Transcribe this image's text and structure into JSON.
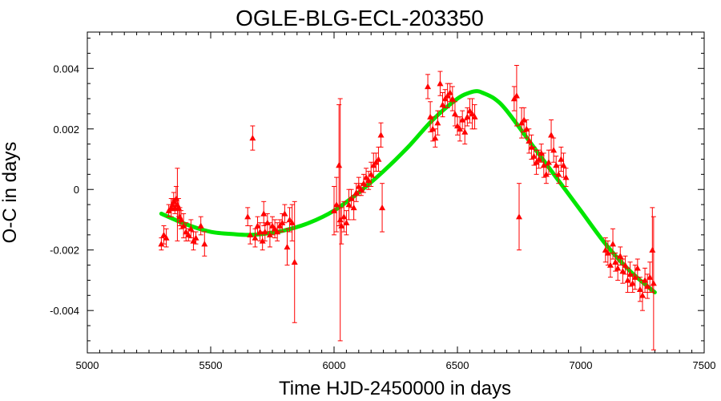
{
  "chart_data": {
    "type": "scatter",
    "title": "OGLE-BLG-ECL-203350",
    "xlabel": "Time HJD-2450000 in days",
    "ylabel": "O-C in days",
    "xlim": [
      5000,
      7500
    ],
    "ylim": [
      -0.0054,
      0.0052
    ],
    "xticks": [
      5000,
      5500,
      6000,
      6500,
      7000,
      7500
    ],
    "xtick_labels": [
      "5000",
      "5500",
      "6000",
      "6500",
      "7000",
      "7500"
    ],
    "yticks": [
      -0.004,
      -0.002,
      0,
      0.002,
      0.004
    ],
    "ytick_labels": [
      "-0.004",
      "-0.002",
      "0",
      "0.002",
      "0.004"
    ],
    "grid": false,
    "colors": {
      "points": "#ff0000",
      "fit": "#00e600",
      "axes": "#000000"
    },
    "series": [
      {
        "kind": "points_with_errorbars",
        "points": [
          {
            "x": 5300,
            "y": -0.0018,
            "err": 0.0002
          },
          {
            "x": 5310,
            "y": -0.0015,
            "err": 0.0003
          },
          {
            "x": 5320,
            "y": -0.0016,
            "err": 0.0003
          },
          {
            "x": 5330,
            "y": -0.0007,
            "err": 0.0002
          },
          {
            "x": 5340,
            "y": -0.0006,
            "err": 0.0003
          },
          {
            "x": 5345,
            "y": -0.0005,
            "err": 0.0002
          },
          {
            "x": 5350,
            "y": -0.0004,
            "err": 0.0003
          },
          {
            "x": 5355,
            "y": -0.0006,
            "err": 0.0002
          },
          {
            "x": 5360,
            "y": -0.0003,
            "err": 0.0004
          },
          {
            "x": 5365,
            "y": -0.0005,
            "err": 0.0012
          },
          {
            "x": 5370,
            "y": -0.0006,
            "err": 0.0003
          },
          {
            "x": 5375,
            "y": -0.0009,
            "err": 0.0003
          },
          {
            "x": 5380,
            "y": -0.001,
            "err": 0.0003
          },
          {
            "x": 5390,
            "y": -0.0012,
            "err": 0.0004
          },
          {
            "x": 5400,
            "y": -0.0014,
            "err": 0.0003
          },
          {
            "x": 5410,
            "y": -0.0015,
            "err": 0.0002
          },
          {
            "x": 5420,
            "y": -0.0013,
            "err": 0.0003
          },
          {
            "x": 5430,
            "y": -0.0017,
            "err": 0.0003
          },
          {
            "x": 5440,
            "y": -0.0016,
            "err": 0.0002
          },
          {
            "x": 5460,
            "y": -0.0012,
            "err": 0.0003
          },
          {
            "x": 5475,
            "y": -0.0018,
            "err": 0.0004
          },
          {
            "x": 5650,
            "y": -0.0009,
            "err": 0.0003
          },
          {
            "x": 5660,
            "y": -0.0015,
            "err": 0.0003
          },
          {
            "x": 5670,
            "y": 0.0017,
            "err": 0.0004
          },
          {
            "x": 5680,
            "y": -0.0016,
            "err": 0.0003
          },
          {
            "x": 5690,
            "y": -0.0012,
            "err": 0.0003
          },
          {
            "x": 5700,
            "y": -0.0014,
            "err": 0.0003
          },
          {
            "x": 5710,
            "y": -0.0017,
            "err": 0.0003
          },
          {
            "x": 5715,
            "y": -0.0008,
            "err": 0.0004
          },
          {
            "x": 5720,
            "y": -0.0014,
            "err": 0.0003
          },
          {
            "x": 5730,
            "y": -0.0011,
            "err": 0.0003
          },
          {
            "x": 5740,
            "y": -0.0015,
            "err": 0.0004
          },
          {
            "x": 5750,
            "y": -0.0012,
            "err": 0.0003
          },
          {
            "x": 5760,
            "y": -0.0013,
            "err": 0.0003
          },
          {
            "x": 5770,
            "y": -0.0014,
            "err": 0.0003
          },
          {
            "x": 5780,
            "y": -0.0012,
            "err": 0.0002
          },
          {
            "x": 5790,
            "y": -0.0011,
            "err": 0.0003
          },
          {
            "x": 5800,
            "y": -0.0008,
            "err": 0.0003
          },
          {
            "x": 5810,
            "y": -0.0019,
            "err": 0.0006
          },
          {
            "x": 5820,
            "y": -0.001,
            "err": 0.0004
          },
          {
            "x": 5830,
            "y": -0.0011,
            "err": 0.0006
          },
          {
            "x": 5840,
            "y": -0.0024,
            "err": 0.002
          },
          {
            "x": 6000,
            "y": -0.0007,
            "err": 0.0008
          },
          {
            "x": 6010,
            "y": -0.0005,
            "err": 0.0009
          },
          {
            "x": 6020,
            "y": 0.0008,
            "err": 0.002
          },
          {
            "x": 6025,
            "y": -0.001,
            "err": 0.004
          },
          {
            "x": 6030,
            "y": -0.0012,
            "err": 0.0006
          },
          {
            "x": 6040,
            "y": -0.0009,
            "err": 0.0005
          },
          {
            "x": 6050,
            "y": -0.0011,
            "err": 0.0004
          },
          {
            "x": 6060,
            "y": -0.0005,
            "err": 0.0005
          },
          {
            "x": 6070,
            "y": -0.0003,
            "err": 0.0003
          },
          {
            "x": 6080,
            "y": -0.0006,
            "err": 0.0004
          },
          {
            "x": 6090,
            "y": -0.0001,
            "err": 0.0003
          },
          {
            "x": 6100,
            "y": 0.0001,
            "err": 0.0003
          },
          {
            "x": 6110,
            "y": 0.0,
            "err": 0.0002
          },
          {
            "x": 6120,
            "y": 0.0002,
            "err": 0.0003
          },
          {
            "x": 6130,
            "y": 0.0004,
            "err": 0.0003
          },
          {
            "x": 6140,
            "y": 0.0003,
            "err": 0.0003
          },
          {
            "x": 6150,
            "y": 0.0005,
            "err": 0.0004
          },
          {
            "x": 6160,
            "y": 0.0008,
            "err": 0.0004
          },
          {
            "x": 6170,
            "y": 0.0009,
            "err": 0.0003
          },
          {
            "x": 6180,
            "y": 0.001,
            "err": 0.0004
          },
          {
            "x": 6190,
            "y": 0.0018,
            "err": 0.0004
          },
          {
            "x": 6195,
            "y": -0.0006,
            "err": 0.0008
          },
          {
            "x": 6380,
            "y": 0.0034,
            "err": 0.0004
          },
          {
            "x": 6390,
            "y": 0.0024,
            "err": 0.0005
          },
          {
            "x": 6400,
            "y": 0.002,
            "err": 0.0004
          },
          {
            "x": 6410,
            "y": 0.0017,
            "err": 0.0003
          },
          {
            "x": 6420,
            "y": 0.0022,
            "err": 0.0004
          },
          {
            "x": 6430,
            "y": 0.0035,
            "err": 0.0004
          },
          {
            "x": 6440,
            "y": 0.0028,
            "err": 0.0004
          },
          {
            "x": 6450,
            "y": 0.003,
            "err": 0.0003
          },
          {
            "x": 6460,
            "y": 0.0031,
            "err": 0.0004
          },
          {
            "x": 6470,
            "y": 0.0032,
            "err": 0.0003
          },
          {
            "x": 6480,
            "y": 0.003,
            "err": 0.0004
          },
          {
            "x": 6490,
            "y": 0.0025,
            "err": 0.0004
          },
          {
            "x": 6500,
            "y": 0.0021,
            "err": 0.0003
          },
          {
            "x": 6510,
            "y": 0.002,
            "err": 0.0004
          },
          {
            "x": 6520,
            "y": 0.0023,
            "err": 0.0003
          },
          {
            "x": 6530,
            "y": 0.0019,
            "err": 0.0004
          },
          {
            "x": 6540,
            "y": 0.0024,
            "err": 0.0003
          },
          {
            "x": 6550,
            "y": 0.0026,
            "err": 0.0004
          },
          {
            "x": 6560,
            "y": 0.0025,
            "err": 0.0005
          },
          {
            "x": 6570,
            "y": 0.0024,
            "err": 0.0004
          },
          {
            "x": 6730,
            "y": 0.003,
            "err": 0.0004
          },
          {
            "x": 6740,
            "y": 0.0031,
            "err": 0.001
          },
          {
            "x": 6750,
            "y": -0.0009,
            "err": 0.0011
          },
          {
            "x": 6760,
            "y": 0.0022,
            "err": 0.0005
          },
          {
            "x": 6770,
            "y": 0.0023,
            "err": 0.0004
          },
          {
            "x": 6780,
            "y": 0.002,
            "err": 0.0003
          },
          {
            "x": 6790,
            "y": 0.0016,
            "err": 0.0004
          },
          {
            "x": 6800,
            "y": 0.0014,
            "err": 0.0004
          },
          {
            "x": 6810,
            "y": 0.0011,
            "err": 0.0003
          },
          {
            "x": 6820,
            "y": 0.0009,
            "err": 0.0004
          },
          {
            "x": 6830,
            "y": 0.001,
            "err": 0.0003
          },
          {
            "x": 6840,
            "y": 0.0012,
            "err": 0.0003
          },
          {
            "x": 6850,
            "y": 0.0008,
            "err": 0.0004
          },
          {
            "x": 6860,
            "y": 0.0005,
            "err": 0.0003
          },
          {
            "x": 6870,
            "y": 0.0009,
            "err": 0.0004
          },
          {
            "x": 6880,
            "y": 0.0018,
            "err": 0.0005
          },
          {
            "x": 6890,
            "y": 0.0013,
            "err": 0.0004
          },
          {
            "x": 6900,
            "y": 0.0008,
            "err": 0.0003
          },
          {
            "x": 6910,
            "y": 0.0005,
            "err": 0.0003
          },
          {
            "x": 6920,
            "y": 0.001,
            "err": 0.0004
          },
          {
            "x": 6930,
            "y": 0.0008,
            "err": 0.0004
          },
          {
            "x": 6940,
            "y": 0.0004,
            "err": 0.0003
          },
          {
            "x": 7100,
            "y": -0.002,
            "err": 0.0004
          },
          {
            "x": 7110,
            "y": -0.0021,
            "err": 0.0004
          },
          {
            "x": 7120,
            "y": -0.0025,
            "err": 0.0004
          },
          {
            "x": 7130,
            "y": -0.0018,
            "err": 0.0005
          },
          {
            "x": 7140,
            "y": -0.0024,
            "err": 0.0003
          },
          {
            "x": 7150,
            "y": -0.0026,
            "err": 0.0004
          },
          {
            "x": 7160,
            "y": -0.0022,
            "err": 0.0003
          },
          {
            "x": 7170,
            "y": -0.0027,
            "err": 0.0004
          },
          {
            "x": 7180,
            "y": -0.0025,
            "err": 0.0003
          },
          {
            "x": 7190,
            "y": -0.003,
            "err": 0.0004
          },
          {
            "x": 7200,
            "y": -0.0028,
            "err": 0.0004
          },
          {
            "x": 7210,
            "y": -0.0031,
            "err": 0.0003
          },
          {
            "x": 7220,
            "y": -0.0029,
            "err": 0.0004
          },
          {
            "x": 7230,
            "y": -0.0026,
            "err": 0.0003
          },
          {
            "x": 7240,
            "y": -0.0033,
            "err": 0.0004
          },
          {
            "x": 7250,
            "y": -0.0035,
            "err": 0.0005
          },
          {
            "x": 7260,
            "y": -0.003,
            "err": 0.0004
          },
          {
            "x": 7270,
            "y": -0.0032,
            "err": 0.0004
          },
          {
            "x": 7280,
            "y": -0.0029,
            "err": 0.0005
          },
          {
            "x": 7290,
            "y": -0.002,
            "err": 0.0014
          },
          {
            "x": 7295,
            "y": -0.0031,
            "err": 0.0022
          }
        ]
      },
      {
        "kind": "fit_curve",
        "x": [
          5300,
          5400,
          5500,
          5600,
          5650,
          5700,
          5800,
          5900,
          6000,
          6100,
          6200,
          6300,
          6400,
          6500,
          6550,
          6580,
          6600,
          6650,
          6700,
          6800,
          6900,
          7000,
          7100,
          7200,
          7300
        ],
        "y": [
          -0.0008,
          -0.00115,
          -0.0014,
          -0.00148,
          -0.0015,
          -0.00148,
          -0.00135,
          -0.0011,
          -0.0007,
          -0.0001,
          0.0006,
          0.0014,
          0.0023,
          0.003,
          0.0032,
          0.00325,
          0.0032,
          0.003,
          0.0026,
          0.0015,
          0.0004,
          -0.0007,
          -0.0018,
          -0.0027,
          -0.0034
        ]
      }
    ]
  }
}
